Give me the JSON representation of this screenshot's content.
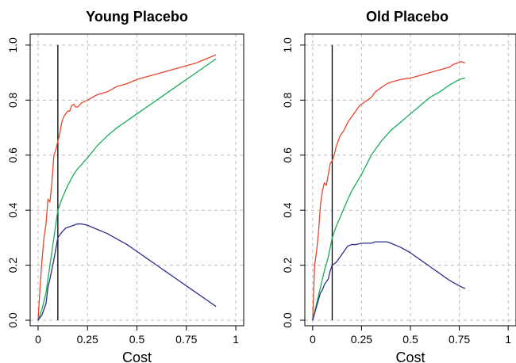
{
  "chart_data": [
    {
      "type": "line",
      "title": "Young Placebo",
      "xlabel": "Cost",
      "ylabel": "",
      "xlim": [
        -0.04,
        1.04
      ],
      "ylim": [
        -0.02,
        1.04
      ],
      "xticks": [
        0,
        0.25,
        0.5,
        0.75,
        1
      ],
      "xtick_labels": [
        "0",
        "0.25",
        "0.5",
        "0.75",
        "1"
      ],
      "yticks": [
        0,
        0.2,
        0.4,
        0.6,
        0.8,
        1
      ],
      "ytick_labels": [
        "0.0",
        "0.2",
        "0.4",
        "0.6",
        "0.8",
        "1.0"
      ],
      "grid": true,
      "vline_x": 0.1,
      "series": [
        {
          "color": "#e8462a",
          "x": [
            0,
            0.01,
            0.02,
            0.03,
            0.04,
            0.05,
            0.06,
            0.07,
            0.08,
            0.09,
            0.1,
            0.11,
            0.12,
            0.13,
            0.14,
            0.15,
            0.16,
            0.17,
            0.18,
            0.19,
            0.2,
            0.22,
            0.25,
            0.3,
            0.35,
            0.4,
            0.45,
            0.5,
            0.55,
            0.6,
            0.65,
            0.7,
            0.75,
            0.8,
            0.85,
            0.9
          ],
          "y": [
            0,
            0.12,
            0.22,
            0.3,
            0.35,
            0.44,
            0.43,
            0.5,
            0.6,
            0.62,
            0.65,
            0.68,
            0.72,
            0.74,
            0.75,
            0.76,
            0.76,
            0.78,
            0.785,
            0.775,
            0.775,
            0.79,
            0.8,
            0.82,
            0.83,
            0.85,
            0.86,
            0.875,
            0.885,
            0.895,
            0.905,
            0.915,
            0.925,
            0.935,
            0.95,
            0.965
          ]
        },
        {
          "color": "#1aab5c",
          "x": [
            0,
            0.02,
            0.04,
            0.06,
            0.08,
            0.1,
            0.12,
            0.15,
            0.18,
            0.2,
            0.25,
            0.3,
            0.35,
            0.4,
            0.5,
            0.6,
            0.7,
            0.8,
            0.9
          ],
          "y": [
            0,
            0.04,
            0.1,
            0.2,
            0.3,
            0.4,
            0.44,
            0.49,
            0.53,
            0.55,
            0.59,
            0.635,
            0.67,
            0.7,
            0.75,
            0.8,
            0.85,
            0.9,
            0.95
          ]
        },
        {
          "color": "#2e2e8c",
          "x": [
            0,
            0.02,
            0.04,
            0.05,
            0.06,
            0.08,
            0.09,
            0.1,
            0.12,
            0.14,
            0.16,
            0.18,
            0.2,
            0.22,
            0.25,
            0.3,
            0.35,
            0.4,
            0.45,
            0.5,
            0.55,
            0.6,
            0.65,
            0.7,
            0.75,
            0.8,
            0.85,
            0.9
          ],
          "y": [
            0,
            0.02,
            0.06,
            0.12,
            0.15,
            0.22,
            0.26,
            0.3,
            0.32,
            0.335,
            0.34,
            0.345,
            0.35,
            0.35,
            0.345,
            0.33,
            0.315,
            0.295,
            0.275,
            0.25,
            0.225,
            0.2,
            0.175,
            0.15,
            0.125,
            0.1,
            0.075,
            0.05
          ]
        }
      ]
    },
    {
      "type": "line",
      "title": "Old Placebo",
      "xlabel": "Cost",
      "ylabel": "",
      "xlim": [
        -0.04,
        1.04
      ],
      "ylim": [
        -0.02,
        1.04
      ],
      "xticks": [
        0,
        0.25,
        0.5,
        0.75,
        1
      ],
      "xtick_labels": [
        "0",
        "0.25",
        "0.5",
        "0.75",
        "1"
      ],
      "yticks": [
        0,
        0.2,
        0.4,
        0.6,
        0.8,
        1
      ],
      "ytick_labels": [
        "0.0",
        "0.2",
        "0.4",
        "0.6",
        "0.8",
        "1.0"
      ],
      "grid": true,
      "vline_x": 0.1,
      "series": [
        {
          "color": "#e8462a",
          "x": [
            0,
            0.01,
            0.02,
            0.03,
            0.04,
            0.05,
            0.06,
            0.07,
            0.08,
            0.09,
            0.1,
            0.11,
            0.12,
            0.14,
            0.16,
            0.18,
            0.2,
            0.22,
            0.24,
            0.26,
            0.28,
            0.3,
            0.32,
            0.34,
            0.36,
            0.38,
            0.4,
            0.45,
            0.5,
            0.55,
            0.6,
            0.65,
            0.7,
            0.72,
            0.74,
            0.76,
            0.78
          ],
          "y": [
            0,
            0.2,
            0.25,
            0.32,
            0.42,
            0.47,
            0.5,
            0.49,
            0.53,
            0.57,
            0.58,
            0.6,
            0.63,
            0.67,
            0.69,
            0.72,
            0.74,
            0.76,
            0.78,
            0.79,
            0.8,
            0.81,
            0.83,
            0.84,
            0.85,
            0.86,
            0.865,
            0.875,
            0.88,
            0.89,
            0.9,
            0.91,
            0.92,
            0.93,
            0.935,
            0.94,
            0.935
          ]
        },
        {
          "color": "#1aab5c",
          "x": [
            0,
            0.02,
            0.04,
            0.06,
            0.08,
            0.1,
            0.12,
            0.15,
            0.18,
            0.2,
            0.25,
            0.3,
            0.35,
            0.4,
            0.45,
            0.5,
            0.55,
            0.6,
            0.65,
            0.7,
            0.75,
            0.78
          ],
          "y": [
            0,
            0.06,
            0.12,
            0.18,
            0.23,
            0.3,
            0.34,
            0.39,
            0.44,
            0.47,
            0.53,
            0.6,
            0.65,
            0.69,
            0.72,
            0.75,
            0.78,
            0.81,
            0.83,
            0.855,
            0.875,
            0.88
          ]
        },
        {
          "color": "#2e2e8c",
          "x": [
            0,
            0.02,
            0.04,
            0.05,
            0.06,
            0.08,
            0.09,
            0.1,
            0.12,
            0.14,
            0.16,
            0.18,
            0.2,
            0.22,
            0.25,
            0.28,
            0.3,
            0.32,
            0.35,
            0.38,
            0.4,
            0.45,
            0.5,
            0.55,
            0.6,
            0.65,
            0.7,
            0.75,
            0.78
          ],
          "y": [
            0,
            0.05,
            0.1,
            0.11,
            0.13,
            0.15,
            0.18,
            0.2,
            0.21,
            0.23,
            0.25,
            0.27,
            0.275,
            0.275,
            0.28,
            0.28,
            0.28,
            0.285,
            0.285,
            0.285,
            0.28,
            0.265,
            0.245,
            0.22,
            0.195,
            0.17,
            0.145,
            0.125,
            0.115
          ]
        }
      ]
    }
  ]
}
